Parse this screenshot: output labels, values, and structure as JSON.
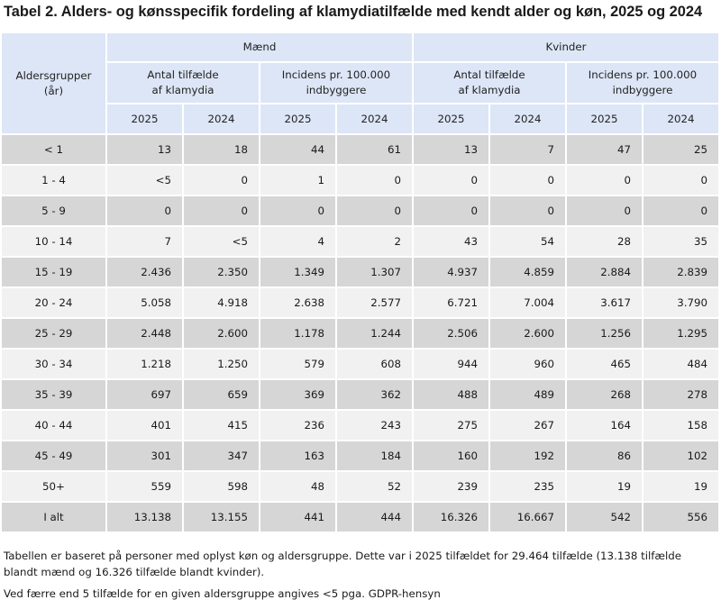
{
  "title": "Tabel 2. Alders- og kønsspecifik fordeling af klamydiatilfælde med kendt alder og køn, 2025 og 2024",
  "header": {
    "age_col_line1": "Aldersgrupper",
    "age_col_line2": "(år)",
    "groups": [
      {
        "label": "Mænd",
        "sub": [
          {
            "line1": "Antal tilfælde",
            "line2": "af klamydia"
          },
          {
            "line1": "Incidens pr. 100.000",
            "line2": "indbyggere"
          }
        ]
      },
      {
        "label": "Kvinder",
        "sub": [
          {
            "line1": "Antal tilfælde",
            "line2": "af klamydia"
          },
          {
            "line1": "Incidens pr. 100.000",
            "line2": "indbyggere"
          }
        ]
      }
    ],
    "years": [
      "2025",
      "2024",
      "2025",
      "2024",
      "2025",
      "2024",
      "2025",
      "2024"
    ]
  },
  "rows": [
    {
      "age": "< 1",
      "values": [
        "13",
        "18",
        "44",
        "61",
        "13",
        "7",
        "47",
        "25"
      ]
    },
    {
      "age": "1 - 4",
      "values": [
        "<5",
        "0",
        "1",
        "0",
        "0",
        "0",
        "0",
        "0"
      ]
    },
    {
      "age": "5 - 9",
      "values": [
        "0",
        "0",
        "0",
        "0",
        "0",
        "0",
        "0",
        "0"
      ]
    },
    {
      "age": "10 - 14",
      "values": [
        "7",
        "<5",
        "4",
        "2",
        "43",
        "54",
        "28",
        "35"
      ]
    },
    {
      "age": "15 - 19",
      "values": [
        "2.436",
        "2.350",
        "1.349",
        "1.307",
        "4.937",
        "4.859",
        "2.884",
        "2.839"
      ]
    },
    {
      "age": "20 - 24",
      "values": [
        "5.058",
        "4.918",
        "2.638",
        "2.577",
        "6.721",
        "7.004",
        "3.617",
        "3.790"
      ]
    },
    {
      "age": "25 - 29",
      "values": [
        "2.448",
        "2.600",
        "1.178",
        "1.244",
        "2.506",
        "2.600",
        "1.256",
        "1.295"
      ]
    },
    {
      "age": "30 - 34",
      "values": [
        "1.218",
        "1.250",
        "579",
        "608",
        "944",
        "960",
        "465",
        "484"
      ]
    },
    {
      "age": "35 - 39",
      "values": [
        "697",
        "659",
        "369",
        "362",
        "488",
        "489",
        "268",
        "278"
      ]
    },
    {
      "age": "40 - 44",
      "values": [
        "401",
        "415",
        "236",
        "243",
        "275",
        "267",
        "164",
        "158"
      ]
    },
    {
      "age": "45 - 49",
      "values": [
        "301",
        "347",
        "163",
        "184",
        "160",
        "192",
        "86",
        "102"
      ]
    },
    {
      "age": "50+",
      "values": [
        "559",
        "598",
        "48",
        "52",
        "239",
        "235",
        "19",
        "19"
      ]
    },
    {
      "age": "I alt",
      "values": [
        "13.138",
        "13.155",
        "441",
        "444",
        "16.326",
        "16.667",
        "542",
        "556"
      ]
    }
  ],
  "notes": [
    "Tabellen er baseret på personer med oplyst køn og aldersgruppe. Dette var i 2025 tilfældet for 29.464 tilfælde (13.138 tilfælde blandt mænd og 16.326 tilfælde blandt kvinder).",
    "Ved færre end 5 tilfælde for en given aldersgruppe angives <5 pga. GDPR-hensyn"
  ],
  "colors": {
    "header_bg": "#dde6f7",
    "row_shade": "#d6d6d6",
    "row_plain": "#f1f1f1"
  }
}
